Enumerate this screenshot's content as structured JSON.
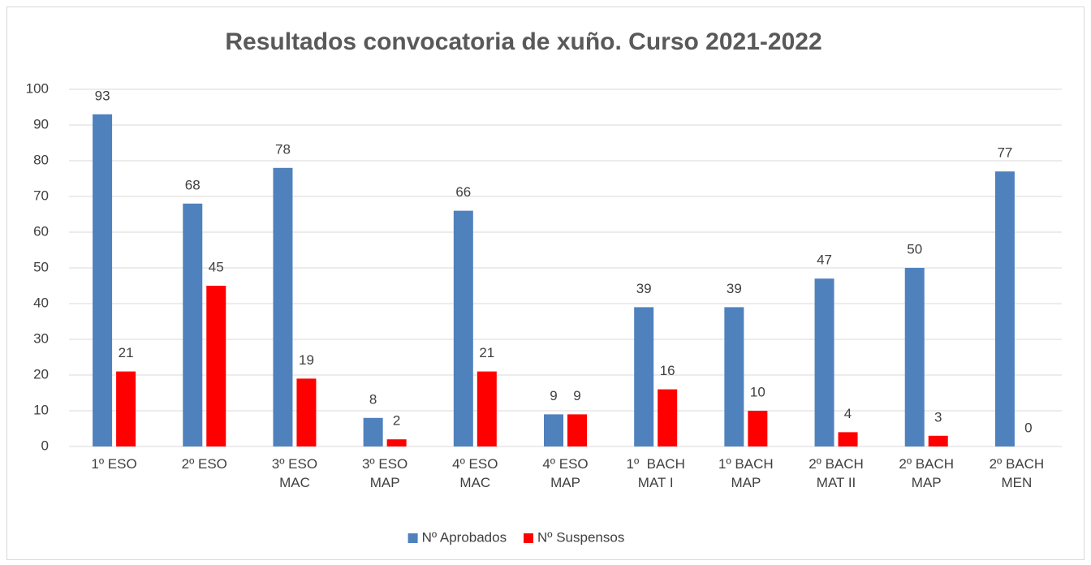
{
  "chart_data": {
    "type": "bar",
    "title": "Resultados convocatoria de xuño. Curso 2021-2022",
    "categories": [
      "1º ESO",
      "2º ESO",
      "3º ESO\nMAC",
      "3º ESO\nMAP",
      "4º ESO\nMAC",
      "4º ESO\nMAP",
      "1º  BACH\nMAT I",
      "1º BACH\nMAP",
      "2º BACH\nMAT II",
      "2º BACH\nMAP",
      "2º BACH\nMEN"
    ],
    "series": [
      {
        "name": "Nº Aprobados",
        "color": "#4f81bd",
        "values": [
          93,
          68,
          78,
          8,
          66,
          9,
          39,
          39,
          47,
          50,
          77
        ]
      },
      {
        "name": "Nº Suspensos",
        "color": "#ff0000",
        "values": [
          21,
          45,
          19,
          2,
          21,
          9,
          16,
          10,
          4,
          3,
          0
        ]
      }
    ],
    "ylim": [
      0,
      100
    ],
    "yticks": [
      0,
      10,
      20,
      30,
      40,
      50,
      60,
      70,
      80,
      90,
      100
    ],
    "grid": true,
    "legend": "bottom"
  }
}
